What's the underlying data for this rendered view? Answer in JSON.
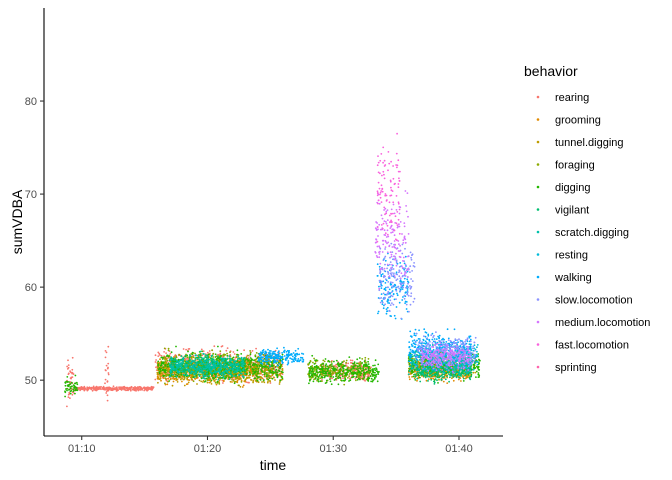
{
  "chart_data": {
    "type": "scatter",
    "xlabel": "time",
    "ylabel": "sumVDBA",
    "x_unit": "minutes",
    "xlim": [
      "01:07:00",
      "01:43:30"
    ],
    "ylim": [
      44,
      90
    ],
    "x_ticks": [
      "01:10",
      "01:20",
      "01:30",
      "01:40"
    ],
    "y_ticks": [
      50,
      60,
      70,
      80
    ],
    "grid": false,
    "legend": {
      "title": "behavior",
      "position": "right"
    },
    "series": [
      {
        "name": "rearing",
        "color": "#F8766D",
        "segments": [
          [
            "01:08:45",
            "01:09:30",
            49.8,
            3.5
          ],
          [
            "01:09:20",
            "01:15:45",
            49.1,
            0.3
          ],
          [
            "01:11:50",
            "01:12:10",
            50.5,
            4.0
          ],
          [
            "01:15:50",
            "01:26:00",
            51.5,
            2.5
          ],
          [
            "01:29:00",
            "01:33:00",
            51.0,
            1.5
          ]
        ]
      },
      {
        "name": "grooming",
        "color": "#E18A00",
        "segments": [
          [
            "01:16:00",
            "01:24:00",
            51.0,
            2.0
          ],
          [
            "01:36:00",
            "01:41:00",
            51.0,
            1.5
          ]
        ]
      },
      {
        "name": "tunnel.digging",
        "color": "#BE9C00",
        "segments": [
          [
            "01:16:00",
            "01:26:00",
            51.0,
            2.0
          ],
          [
            "01:36:00",
            "01:41:20",
            51.5,
            1.8
          ]
        ]
      },
      {
        "name": "foraging",
        "color": "#8CAB00",
        "segments": [
          [
            "01:16:30",
            "01:25:00",
            51.5,
            2.2
          ],
          [
            "01:28:00",
            "01:33:00",
            51.0,
            1.6
          ]
        ]
      },
      {
        "name": "digging",
        "color": "#24B700",
        "segments": [
          [
            "01:08:40",
            "01:09:40",
            49.3,
            1.5
          ],
          [
            "01:16:00",
            "01:26:00",
            51.5,
            2.2
          ],
          [
            "01:28:00",
            "01:33:40",
            51.0,
            1.8
          ],
          [
            "01:36:00",
            "01:41:40",
            51.5,
            2.0
          ]
        ]
      },
      {
        "name": "vigilant",
        "color": "#00BE70",
        "segments": [
          [
            "01:17:00",
            "01:23:00",
            51.5,
            1.5
          ],
          [
            "01:36:30",
            "01:41:00",
            51.0,
            1.5
          ]
        ]
      },
      {
        "name": "scratch.digging",
        "color": "#00C1AB",
        "segments": [
          [
            "01:17:00",
            "01:23:00",
            51.5,
            1.8
          ],
          [
            "01:36:00",
            "01:41:00",
            52.0,
            2.0
          ]
        ]
      },
      {
        "name": "resting",
        "color": "#00BBDA",
        "segments": [
          [
            "01:37:00",
            "01:41:30",
            52.5,
            2.2
          ]
        ]
      },
      {
        "name": "walking",
        "color": "#00ACFC",
        "segments": [
          [
            "01:24:00",
            "01:27:40",
            52.5,
            1.2
          ],
          [
            "01:33:30",
            "01:36:00",
            60.0,
            5.0
          ],
          [
            "01:36:00",
            "01:41:00",
            53.5,
            2.5
          ]
        ]
      },
      {
        "name": "slow.locomotion",
        "color": "#8B93FF",
        "segments": [
          [
            "01:33:40",
            "01:36:30",
            61.0,
            5.0
          ],
          [
            "01:36:30",
            "01:41:20",
            53.0,
            2.5
          ]
        ]
      },
      {
        "name": "medium.locomotion",
        "color": "#D575FE",
        "segments": [
          [
            "01:33:20",
            "01:36:00",
            65.0,
            6.5
          ],
          [
            "01:37:00",
            "01:40:50",
            52.5,
            2.0
          ]
        ]
      },
      {
        "name": "fast.locomotion",
        "color": "#F962DD",
        "segments": [
          [
            "01:33:30",
            "01:35:20",
            70.0,
            8.0
          ]
        ]
      },
      {
        "name": "sprinting",
        "color": "#FF65AC",
        "segments": []
      }
    ]
  }
}
